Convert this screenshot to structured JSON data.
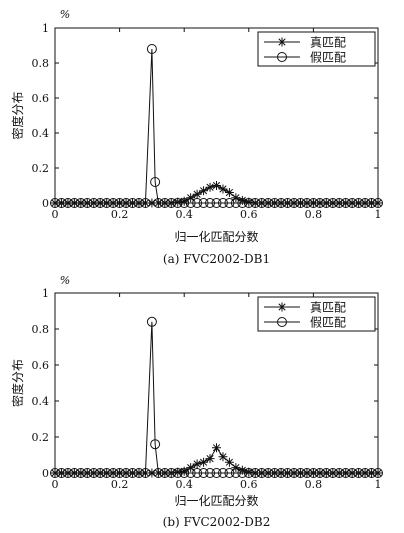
{
  "chart_data": [
    {
      "type": "line",
      "ylabel_unit": "%",
      "ylabel": "密度分布",
      "xlabel": "归一化匹配分数",
      "caption": "(a) FVC2002-DB1",
      "xlim": [
        0,
        1
      ],
      "ylim": [
        0,
        1
      ],
      "xticks": [
        "0",
        "0.2",
        "0.4",
        "0.6",
        "0.8",
        "1"
      ],
      "yticks": [
        "0",
        "0.2",
        "0.4",
        "0.6",
        "0.8",
        "1"
      ],
      "legend_position": "top-right",
      "series": [
        {
          "name": "真匹配",
          "marker": "star",
          "points": [
            [
              0,
              0
            ],
            [
              0.02,
              0
            ],
            [
              0.04,
              0
            ],
            [
              0.06,
              0
            ],
            [
              0.08,
              0
            ],
            [
              0.1,
              0
            ],
            [
              0.12,
              0
            ],
            [
              0.14,
              0
            ],
            [
              0.16,
              0
            ],
            [
              0.18,
              0
            ],
            [
              0.2,
              0
            ],
            [
              0.22,
              0
            ],
            [
              0.24,
              0
            ],
            [
              0.26,
              0
            ],
            [
              0.28,
              0
            ],
            [
              0.3,
              0
            ],
            [
              0.32,
              0
            ],
            [
              0.34,
              0
            ],
            [
              0.36,
              0
            ],
            [
              0.38,
              0.005
            ],
            [
              0.4,
              0.01
            ],
            [
              0.42,
              0.03
            ],
            [
              0.44,
              0.05
            ],
            [
              0.46,
              0.07
            ],
            [
              0.48,
              0.09
            ],
            [
              0.5,
              0.1
            ],
            [
              0.52,
              0.08
            ],
            [
              0.54,
              0.06
            ],
            [
              0.56,
              0.03
            ],
            [
              0.58,
              0.015
            ],
            [
              0.6,
              0.005
            ],
            [
              0.62,
              0
            ],
            [
              0.64,
              0
            ],
            [
              0.66,
              0
            ],
            [
              0.68,
              0
            ],
            [
              0.7,
              0
            ],
            [
              0.72,
              0
            ],
            [
              0.74,
              0
            ],
            [
              0.76,
              0
            ],
            [
              0.78,
              0
            ],
            [
              0.8,
              0
            ],
            [
              0.82,
              0
            ],
            [
              0.84,
              0
            ],
            [
              0.86,
              0
            ],
            [
              0.88,
              0
            ],
            [
              0.9,
              0
            ],
            [
              0.92,
              0
            ],
            [
              0.94,
              0
            ],
            [
              0.96,
              0
            ],
            [
              0.98,
              0
            ],
            [
              1,
              0
            ]
          ]
        },
        {
          "name": "假匹配",
          "marker": "circle",
          "points": [
            [
              0,
              0
            ],
            [
              0.02,
              0
            ],
            [
              0.04,
              0
            ],
            [
              0.06,
              0
            ],
            [
              0.08,
              0
            ],
            [
              0.1,
              0
            ],
            [
              0.12,
              0
            ],
            [
              0.14,
              0
            ],
            [
              0.16,
              0
            ],
            [
              0.18,
              0
            ],
            [
              0.2,
              0
            ],
            [
              0.22,
              0
            ],
            [
              0.24,
              0
            ],
            [
              0.26,
              0
            ],
            [
              0.28,
              0
            ],
            [
              0.3,
              0.88
            ],
            [
              0.31,
              0.12
            ],
            [
              0.32,
              0
            ],
            [
              0.34,
              0
            ],
            [
              0.36,
              0
            ],
            [
              0.38,
              0
            ],
            [
              0.4,
              0
            ],
            [
              0.42,
              0
            ],
            [
              0.44,
              0
            ],
            [
              0.46,
              0
            ],
            [
              0.48,
              0
            ],
            [
              0.5,
              0
            ],
            [
              0.52,
              0
            ],
            [
              0.54,
              0
            ],
            [
              0.56,
              0
            ],
            [
              0.58,
              0
            ],
            [
              0.6,
              0
            ],
            [
              0.62,
              0
            ],
            [
              0.64,
              0
            ],
            [
              0.66,
              0
            ],
            [
              0.68,
              0
            ],
            [
              0.7,
              0
            ],
            [
              0.72,
              0
            ],
            [
              0.74,
              0
            ],
            [
              0.76,
              0
            ],
            [
              0.78,
              0
            ],
            [
              0.8,
              0
            ],
            [
              0.82,
              0
            ],
            [
              0.84,
              0
            ],
            [
              0.86,
              0
            ],
            [
              0.88,
              0
            ],
            [
              0.9,
              0
            ],
            [
              0.92,
              0
            ],
            [
              0.94,
              0
            ],
            [
              0.96,
              0
            ],
            [
              0.98,
              0
            ],
            [
              1,
              0
            ]
          ]
        }
      ]
    },
    {
      "type": "line",
      "ylabel_unit": "%",
      "ylabel": "密度分布",
      "xlabel": "归一化匹配分数",
      "caption": "(b) FVC2002-DB2",
      "xlim": [
        0,
        1
      ],
      "ylim": [
        0,
        1
      ],
      "xticks": [
        "0",
        "0.2",
        "0.4",
        "0.6",
        "0.8",
        "1"
      ],
      "yticks": [
        "0",
        "0.2",
        "0.4",
        "0.6",
        "0.8",
        "1"
      ],
      "legend_position": "top-right",
      "series": [
        {
          "name": "真匹配",
          "marker": "star",
          "points": [
            [
              0,
              0
            ],
            [
              0.02,
              0
            ],
            [
              0.04,
              0
            ],
            [
              0.06,
              0
            ],
            [
              0.08,
              0
            ],
            [
              0.1,
              0
            ],
            [
              0.12,
              0
            ],
            [
              0.14,
              0
            ],
            [
              0.16,
              0
            ],
            [
              0.18,
              0
            ],
            [
              0.2,
              0
            ],
            [
              0.22,
              0
            ],
            [
              0.24,
              0
            ],
            [
              0.26,
              0
            ],
            [
              0.28,
              0
            ],
            [
              0.3,
              0
            ],
            [
              0.32,
              0
            ],
            [
              0.34,
              0
            ],
            [
              0.36,
              0
            ],
            [
              0.38,
              0.005
            ],
            [
              0.4,
              0.01
            ],
            [
              0.42,
              0.03
            ],
            [
              0.44,
              0.05
            ],
            [
              0.46,
              0.06
            ],
            [
              0.48,
              0.08
            ],
            [
              0.5,
              0.14
            ],
            [
              0.52,
              0.09
            ],
            [
              0.54,
              0.06
            ],
            [
              0.56,
              0.03
            ],
            [
              0.58,
              0.015
            ],
            [
              0.6,
              0.005
            ],
            [
              0.62,
              0
            ],
            [
              0.64,
              0
            ],
            [
              0.66,
              0
            ],
            [
              0.68,
              0
            ],
            [
              0.7,
              0
            ],
            [
              0.72,
              0
            ],
            [
              0.74,
              0
            ],
            [
              0.76,
              0
            ],
            [
              0.78,
              0
            ],
            [
              0.8,
              0
            ],
            [
              0.82,
              0
            ],
            [
              0.84,
              0
            ],
            [
              0.86,
              0
            ],
            [
              0.88,
              0
            ],
            [
              0.9,
              0
            ],
            [
              0.92,
              0
            ],
            [
              0.94,
              0
            ],
            [
              0.96,
              0
            ],
            [
              0.98,
              0
            ],
            [
              1,
              0
            ]
          ]
        },
        {
          "name": "假匹配",
          "marker": "circle",
          "points": [
            [
              0,
              0
            ],
            [
              0.02,
              0
            ],
            [
              0.04,
              0
            ],
            [
              0.06,
              0
            ],
            [
              0.08,
              0
            ],
            [
              0.1,
              0
            ],
            [
              0.12,
              0
            ],
            [
              0.14,
              0
            ],
            [
              0.16,
              0
            ],
            [
              0.18,
              0
            ],
            [
              0.2,
              0
            ],
            [
              0.22,
              0
            ],
            [
              0.24,
              0
            ],
            [
              0.26,
              0
            ],
            [
              0.28,
              0
            ],
            [
              0.3,
              0.84
            ],
            [
              0.31,
              0.16
            ],
            [
              0.32,
              0
            ],
            [
              0.34,
              0
            ],
            [
              0.36,
              0
            ],
            [
              0.38,
              0
            ],
            [
              0.4,
              0
            ],
            [
              0.42,
              0
            ],
            [
              0.44,
              0
            ],
            [
              0.46,
              0
            ],
            [
              0.48,
              0
            ],
            [
              0.5,
              0
            ],
            [
              0.52,
              0
            ],
            [
              0.54,
              0
            ],
            [
              0.56,
              0
            ],
            [
              0.58,
              0
            ],
            [
              0.6,
              0
            ],
            [
              0.62,
              0
            ],
            [
              0.64,
              0
            ],
            [
              0.66,
              0
            ],
            [
              0.68,
              0
            ],
            [
              0.7,
              0
            ],
            [
              0.72,
              0
            ],
            [
              0.74,
              0
            ],
            [
              0.76,
              0
            ],
            [
              0.78,
              0
            ],
            [
              0.8,
              0
            ],
            [
              0.82,
              0
            ],
            [
              0.84,
              0
            ],
            [
              0.86,
              0
            ],
            [
              0.88,
              0
            ],
            [
              0.9,
              0
            ],
            [
              0.92,
              0
            ],
            [
              0.94,
              0
            ],
            [
              0.96,
              0
            ],
            [
              0.98,
              0
            ],
            [
              1,
              0
            ]
          ]
        }
      ]
    }
  ]
}
